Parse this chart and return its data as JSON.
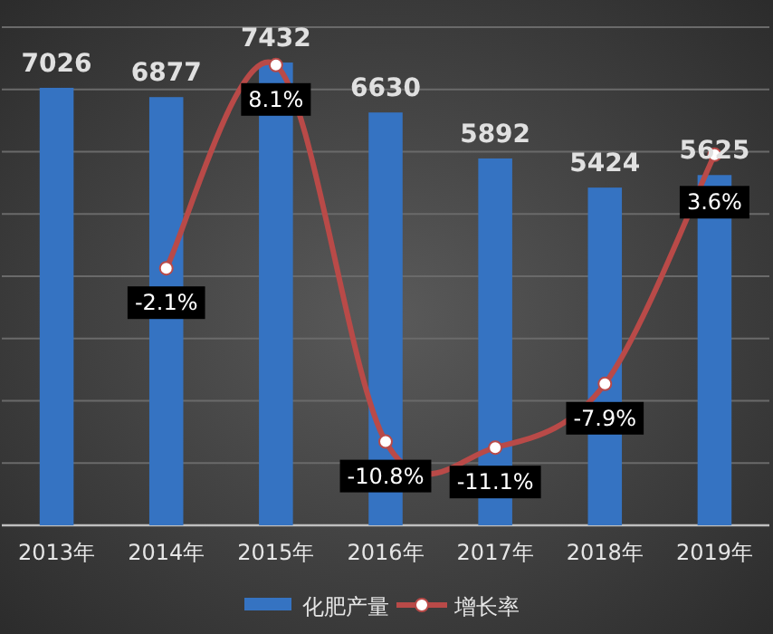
{
  "chart_data": {
    "type": "bar",
    "categories": [
      "2013年",
      "2014年",
      "2015年",
      "2016年",
      "2017年",
      "2018年",
      "2019年"
    ],
    "series": [
      {
        "name": "化肥产量",
        "color": "#3573c2",
        "values": [
          7026,
          6877,
          7432,
          6630,
          5892,
          5424,
          5625
        ],
        "value_labels": [
          "7026",
          "6877",
          "7432",
          "6630",
          "5892",
          "5424",
          "5625"
        ]
      },
      {
        "name": "增长率",
        "type": "line",
        "axis": "y2",
        "color": "#b94a48",
        "marker": "circle",
        "values": [
          null,
          -2.1,
          8.1,
          -10.8,
          -11.1,
          -7.9,
          3.6
        ],
        "value_labels": [
          null,
          "-2.1%",
          "8.1%",
          "-10.8%",
          "-11.1%",
          "-7.9%",
          "3.6%"
        ]
      }
    ],
    "ylim": [
      0,
      8000
    ],
    "yticks": [
      {
        "value": 0,
        "label": null
      },
      {
        "value": 1000,
        "label": null
      },
      {
        "value": 2000,
        "label": null
      },
      {
        "value": 3000,
        "label": null
      },
      {
        "value": 4000,
        "label": null
      },
      {
        "value": 5000,
        "label": null
      },
      {
        "value": 6000,
        "label": null
      },
      {
        "value": 7000,
        "label": null
      },
      {
        "value": 8000,
        "label": null
      }
    ],
    "y2lim": [
      -15,
      10
    ],
    "tick_labels": "x",
    "grid": "y",
    "legend": "bottom"
  }
}
